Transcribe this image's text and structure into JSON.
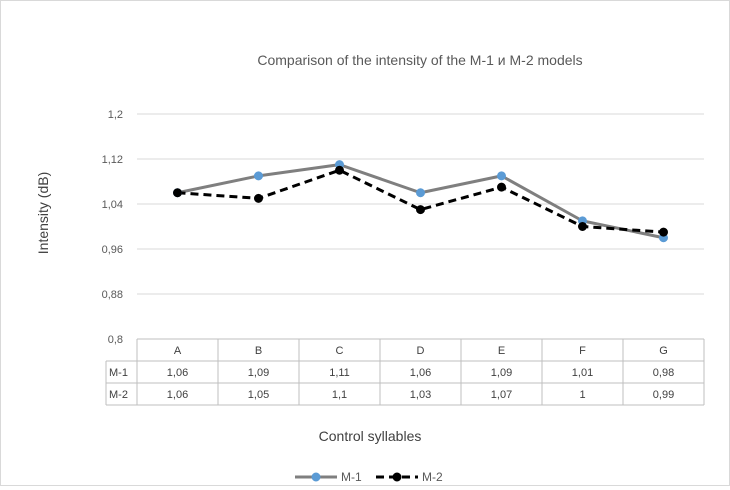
{
  "chart_data": {
    "type": "line",
    "title": "Comparison of the intensity of the M-1 и M-2 models",
    "xlabel": "Control syllables",
    "ylabel": "Intensity (dB)",
    "categories": [
      "A",
      "B",
      "C",
      "D",
      "E",
      "F",
      "G"
    ],
    "ylim": [
      0.8,
      1.2
    ],
    "yticks": [
      "0,8",
      "0,88",
      "0,96",
      "1,04",
      "1,12",
      "1,2"
    ],
    "ytick_values": [
      0.8,
      0.88,
      0.96,
      1.04,
      1.12,
      1.2
    ],
    "grid": true,
    "legend_position": "bottom",
    "data_table": true,
    "series": [
      {
        "name": "M-1",
        "values": [
          1.06,
          1.09,
          1.11,
          1.06,
          1.09,
          1.01,
          0.98
        ],
        "labels": [
          "1,06",
          "1,09",
          "1,11",
          "1,06",
          "1,09",
          "1,01",
          "0,98"
        ],
        "line_color": "#7f7f7f",
        "marker_color": "#5b9bd5",
        "dashed": false
      },
      {
        "name": "M-2",
        "values": [
          1.06,
          1.05,
          1.1,
          1.03,
          1.07,
          1,
          0.99
        ],
        "labels": [
          "1,06",
          "1,05",
          "1,1",
          "1,03",
          "1,07",
          "1",
          "0,99"
        ],
        "line_color": "#000000",
        "marker_color": "#000000",
        "dashed": true
      }
    ]
  }
}
